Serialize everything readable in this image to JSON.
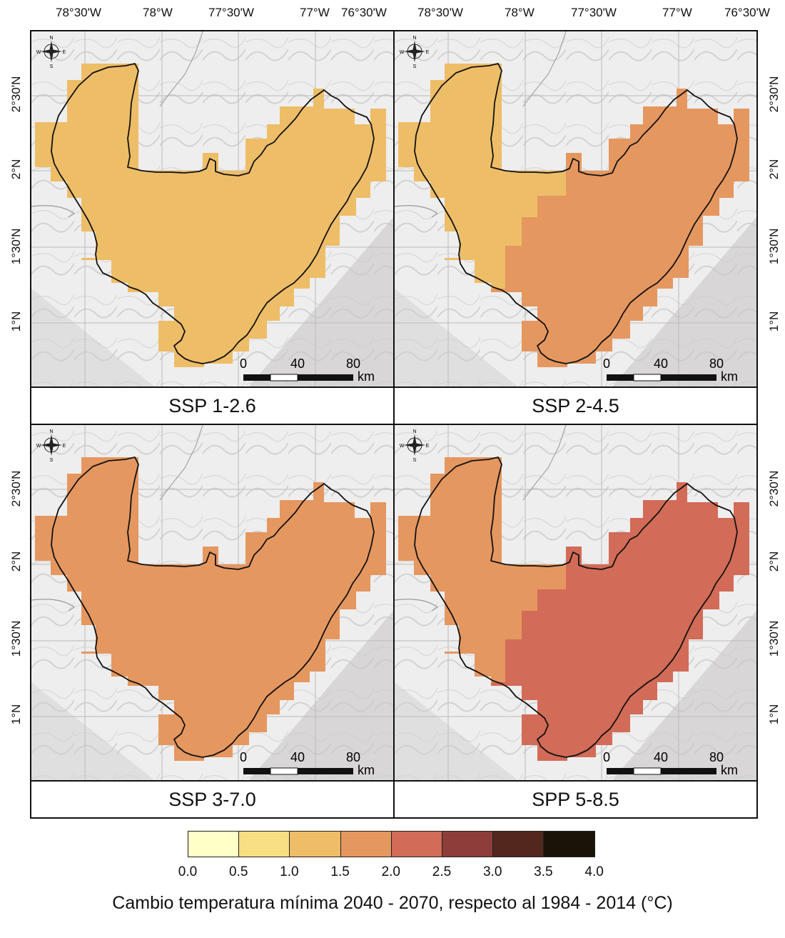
{
  "axes": {
    "lon_labels": [
      "78°30'W",
      "78°W",
      "77°30'W",
      "77°W",
      "76°30'W"
    ],
    "lat_labels": [
      "2°30'N",
      "2°N",
      "1°30'N",
      "1°N"
    ]
  },
  "panels": [
    {
      "id": "ssp126",
      "caption": "SSP 1-2.6",
      "main_fill": "#eebd68",
      "west_fill": "#eebd68"
    },
    {
      "id": "ssp245",
      "caption": "SSP 2-4.5",
      "main_fill": "#e59760",
      "west_fill": "#eebd68"
    },
    {
      "id": "ssp370",
      "caption": "SSP 3-7.0",
      "main_fill": "#e59760",
      "west_fill": "#e59760"
    },
    {
      "id": "ssp585",
      "caption": "SPP 5-8.5",
      "main_fill": "#d26b57",
      "west_fill": "#e59760"
    }
  ],
  "scalebar": {
    "labels": [
      "0",
      "40",
      "80"
    ],
    "unit": "km"
  },
  "compass": {
    "n": "N",
    "s": "S",
    "e": "E",
    "w": "W"
  },
  "legend": {
    "title": "Cambio temperatura mínima 2040 - 2070, respecto al 1984 - 2014 (°C)",
    "breaks": [
      "0.0",
      "0.5",
      "1.0",
      "1.5",
      "2.0",
      "2.5",
      "3.0",
      "3.5",
      "4.0"
    ],
    "colors": [
      "#ffffc8",
      "#f8df84",
      "#eebd68",
      "#e59760",
      "#d26b57",
      "#8d3e3a",
      "#52281e",
      "#1a1408"
    ]
  }
}
